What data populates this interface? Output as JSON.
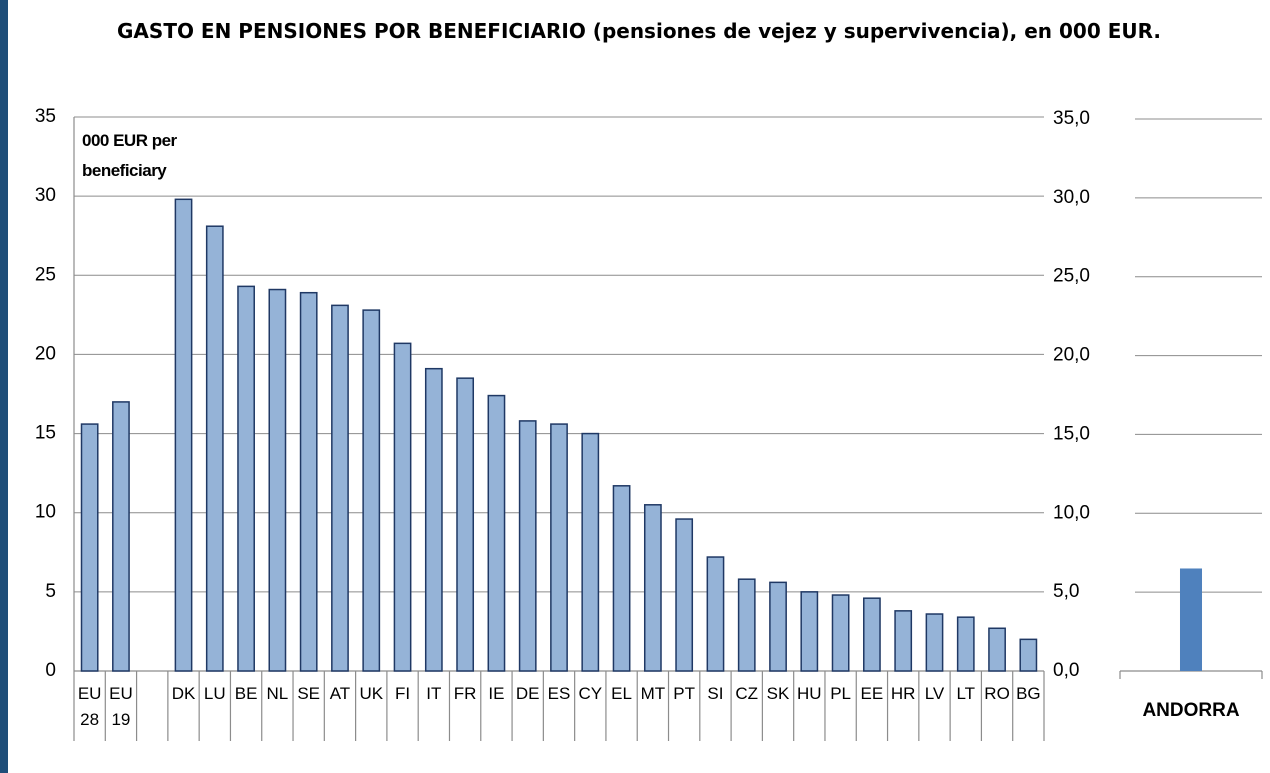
{
  "title": "GASTO EN PENSIONES POR BENEFICIARIO (pensiones de vejez y supervivencia), en 000 EUR.",
  "chart_data": [
    {
      "type": "bar",
      "annotation": "000 EUR per beneficiary",
      "categories": [
        "EU 28",
        "EU 19",
        null,
        "DK",
        "LU",
        "BE",
        "NL",
        "SE",
        "AT",
        "UK",
        "FI",
        "IT",
        "FR",
        "IE",
        "DE",
        "ES",
        "CY",
        "EL",
        "MT",
        "PT",
        "SI",
        "CZ",
        "SK",
        "HU",
        "PL",
        "EE",
        "HR",
        "LV",
        "LT",
        "RO",
        "BG"
      ],
      "values": [
        15.6,
        17.0,
        null,
        29.8,
        28.1,
        24.3,
        24.1,
        23.9,
        23.1,
        22.8,
        20.7,
        19.1,
        18.5,
        17.4,
        15.8,
        15.6,
        15.0,
        11.7,
        10.5,
        9.6,
        7.2,
        5.8,
        5.6,
        5.0,
        4.8,
        4.6,
        3.8,
        3.6,
        3.4,
        2.7,
        2.0
      ],
      "color": "#95b3d7",
      "ylim": [
        0,
        35
      ],
      "yticks": [
        0,
        5,
        10,
        15,
        20,
        25,
        30,
        35
      ],
      "grid": true
    },
    {
      "type": "bar",
      "categories": [
        "ANDORRA"
      ],
      "values": [
        6.5
      ],
      "color": "#4f81bd",
      "ylim": [
        0,
        35
      ],
      "yticks": [
        {
          "value": 0,
          "label": "0,0"
        },
        {
          "value": 5,
          "label": "5,0"
        },
        {
          "value": 10,
          "label": "10,0"
        },
        {
          "value": 15,
          "label": "15,0"
        },
        {
          "value": 20,
          "label": "20,0"
        },
        {
          "value": 25,
          "label": "25,0"
        },
        {
          "value": 30,
          "label": "30,0"
        },
        {
          "value": 35,
          "label": "35,0"
        }
      ],
      "grid": true
    }
  ]
}
